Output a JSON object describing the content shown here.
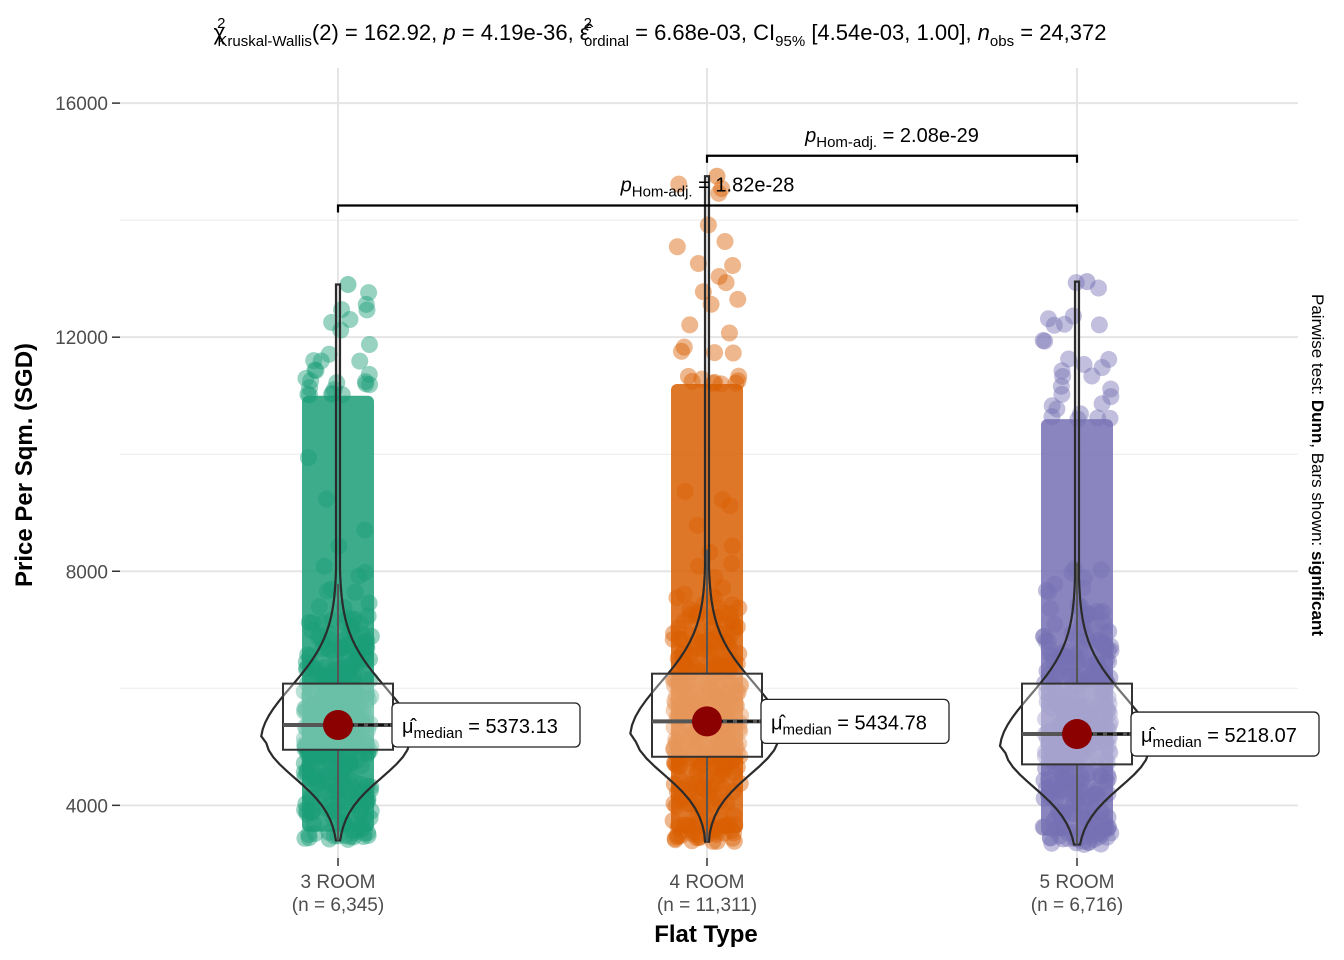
{
  "chart_data": {
    "type": "violin-box-scatter",
    "title": {
      "stat_name": "Kruskal-Wallis",
      "df": "2",
      "statistic": "162.92",
      "p_value": "4.19e-36",
      "effect_size_name": "ordinal",
      "effect_size": "6.68e-03",
      "ci_level": "95%",
      "ci": "[4.54e-03, 1.00]",
      "n_obs": "24,372"
    },
    "xlabel": "Flat Type",
    "ylabel": "Price Per Sqm. (SGD)",
    "y_ticks": [
      4000,
      8000,
      12000,
      16000
    ],
    "y_tick_labels": [
      "4000",
      "8000",
      "12000",
      "16000"
    ],
    "ylim": [
      3100,
      16600
    ],
    "grid": true,
    "caption": {
      "prefix": "Pairwise test: ",
      "test": "Dunn",
      "middle": ", Bars shown: ",
      "shown": "significant"
    },
    "groups": [
      {
        "category": "3 ROOM",
        "n_label": "(n = 6,345)",
        "color": "#1B9E77",
        "median": 5373.13,
        "median_label": "= 5373.13",
        "q1": 4950,
        "q3": 6080,
        "whisker_low": 3400,
        "whisker_high": 7780,
        "min": 3400,
        "max": 12900,
        "dense_top": 11000
      },
      {
        "category": "4 ROOM",
        "n_label": "(n = 11,311)",
        "color": "#D95F02",
        "median": 5434.78,
        "median_label": "= 5434.78",
        "q1": 4830,
        "q3": 6250,
        "whisker_low": 3380,
        "whisker_high": 8370,
        "min": 3380,
        "max": 14750,
        "dense_top": 11200
      },
      {
        "category": "5 ROOM",
        "n_label": "(n = 6,716)",
        "color": "#7570B3",
        "median": 5218.07,
        "median_label": "= 5218.07",
        "q1": 4700,
        "q3": 6080,
        "whisker_low": 3330,
        "whisker_high": 8150,
        "min": 3330,
        "max": 12950,
        "dense_top": 10600
      }
    ],
    "median_label_prefix": "median",
    "pairwise": [
      {
        "from": 1,
        "to": 2,
        "y": 15100,
        "label_p": "Hom-adj.",
        "label_value": "= 2.08e-29"
      },
      {
        "from": 0,
        "to": 2,
        "y": 14250,
        "label_p": "Hom-adj.",
        "label_value": "= 1.82e-28"
      }
    ]
  }
}
